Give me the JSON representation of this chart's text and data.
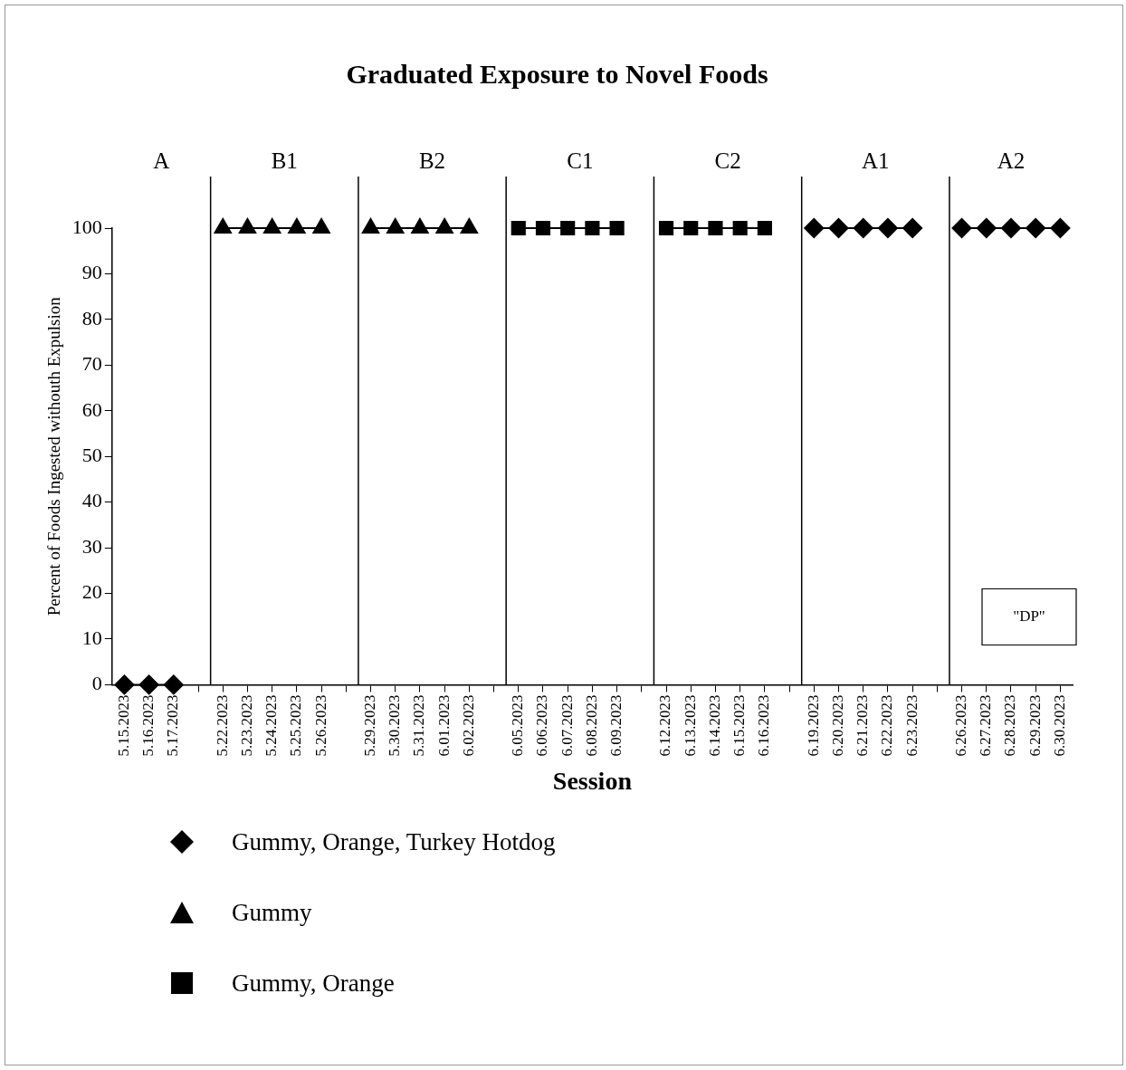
{
  "chart_data": {
    "type": "line",
    "title": "Graduated Exposure to Novel Foods",
    "xlabel": "Session",
    "ylabel": "Percent of Foods Ingested withouth Expulsion",
    "categories": [
      "5.15.2023",
      "5.16.2023",
      "5.17.2023",
      null,
      "5.22.2023",
      "5.23.2023",
      "5.24.2023",
      "5.25.2023",
      "5.26.2023",
      null,
      "5.29.2023",
      "5.30.2023",
      "5.31.2023",
      "6.01.2023",
      "6.02.2023",
      null,
      "6.05.2023",
      "6.06.2023",
      "6.07.2023",
      "6.08.2023",
      "6.09.2023",
      null,
      "6.12.2023",
      "6.13.2023",
      "6.14.2023",
      "6.15.2023",
      "6.16.2023",
      null,
      "6.19.2023",
      "6.20.2023",
      "6.21.2023",
      "6.22.2023",
      "6.23.2023",
      null,
      "6.26.2023",
      "6.27.2023",
      "6.28.2023",
      "6.29.2023",
      "6.30.2023"
    ],
    "series": [
      {
        "name": "Gummy, Orange, Turkey Hotdog",
        "color": "#000000",
        "marker": "diamond",
        "values": [
          0,
          0,
          0,
          null,
          null,
          null,
          null,
          null,
          null,
          null,
          null,
          null,
          null,
          null,
          null,
          null,
          null,
          null,
          null,
          null,
          null,
          null,
          null,
          null,
          null,
          null,
          null,
          null,
          100,
          100,
          100,
          100,
          100,
          null,
          100,
          100,
          100,
          100,
          100
        ]
      },
      {
        "name": "Gummy",
        "color": "#000000",
        "marker": "triangle",
        "values": [
          null,
          null,
          null,
          null,
          100,
          100,
          100,
          100,
          100,
          null,
          100,
          100,
          100,
          100,
          100,
          null,
          null,
          null,
          null,
          null,
          null,
          null,
          null,
          null,
          null,
          null,
          null,
          null,
          null,
          null,
          null,
          null,
          null,
          null,
          null,
          null,
          null,
          null,
          null
        ]
      },
      {
        "name": "Gummy, Orange",
        "color": "#000000",
        "marker": "square",
        "values": [
          null,
          null,
          null,
          null,
          null,
          null,
          null,
          null,
          null,
          null,
          null,
          null,
          null,
          null,
          null,
          null,
          100,
          100,
          100,
          100,
          100,
          null,
          100,
          100,
          100,
          100,
          100,
          null,
          null,
          null,
          null,
          null,
          null,
          null,
          null,
          null,
          null,
          null,
          null
        ]
      }
    ],
    "ylim": [
      0,
      100
    ],
    "yticks": [
      0,
      10,
      20,
      30,
      40,
      50,
      60,
      70,
      80,
      90,
      100
    ],
    "grid": false,
    "legend": "bottom left",
    "line_style": "solid",
    "ref_lines": [
      {
        "axis": "x",
        "value": "5.22.2023",
        "color": "#000000"
      },
      {
        "axis": "x",
        "value": "5.29.2023",
        "color": "#000000"
      },
      {
        "axis": "x",
        "value": "6.05.2023",
        "color": "#000000"
      },
      {
        "axis": "x",
        "value": "6.12.2023",
        "color": "#000000"
      },
      {
        "axis": "x",
        "value": "6.19.2023",
        "color": "#000000"
      },
      {
        "axis": "x",
        "value": "6.26.2023",
        "color": "#000000"
      }
    ],
    "annotations": [
      "A",
      "B1",
      "B2",
      "C1",
      "C2",
      "A1",
      "A2",
      "\"DP\""
    ]
  }
}
